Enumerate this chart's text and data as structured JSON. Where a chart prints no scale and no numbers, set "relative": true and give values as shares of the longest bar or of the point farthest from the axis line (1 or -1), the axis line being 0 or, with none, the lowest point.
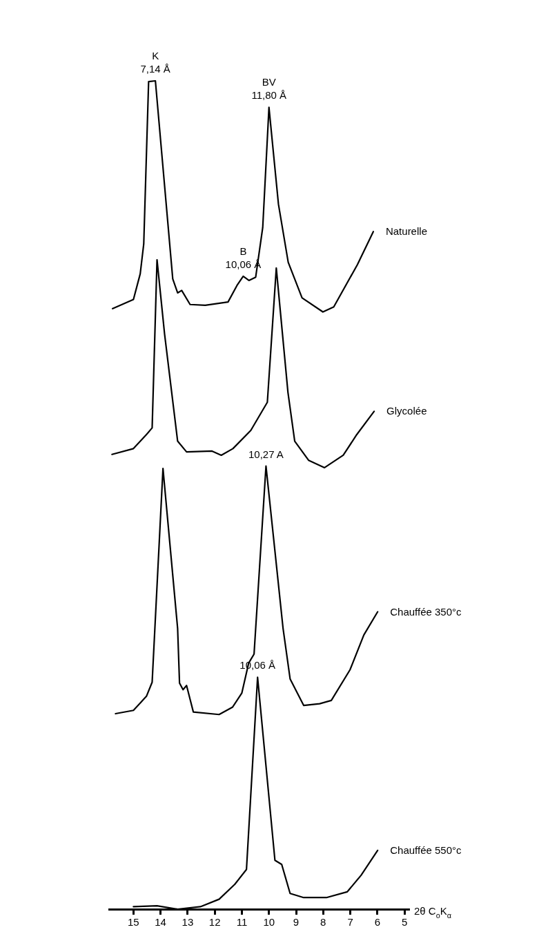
{
  "chart_data": {
    "type": "line",
    "relative": true,
    "xlabel": "2θ C$_{o}$K$_{α}$",
    "xlim": [
      15.9,
      4.85
    ],
    "xticks": [
      15,
      14,
      13,
      12,
      11,
      10,
      9,
      8,
      7,
      6,
      5
    ],
    "grid": false,
    "legend": false,
    "marker": "none",
    "line_style": "solid",
    "series": [
      {
        "name": "Naturelle",
        "color": "#000000",
        "x": [
          15.77,
          15.0,
          14.75,
          14.62,
          14.44,
          14.19,
          13.55,
          13.37,
          13.22,
          12.91,
          12.35,
          11.51,
          11.18,
          10.95,
          10.74,
          10.49,
          10.23,
          10.0,
          9.65,
          9.29,
          8.78,
          8.01,
          7.61,
          6.74,
          6.15
        ],
        "values": [
          0.725,
          0.736,
          0.767,
          0.803,
          0.999,
          1.0,
          0.761,
          0.744,
          0.747,
          0.73,
          0.729,
          0.733,
          0.753,
          0.764,
          0.759,
          0.763,
          0.823,
          0.968,
          0.851,
          0.781,
          0.738,
          0.721,
          0.727,
          0.778,
          0.818
        ]
      },
      {
        "name": "Glycolée",
        "color": "#000000",
        "x": [
          15.79,
          15.0,
          14.52,
          14.31,
          14.13,
          13.85,
          13.37,
          13.04,
          12.1,
          11.76,
          11.33,
          10.67,
          10.06,
          9.73,
          9.3,
          9.05,
          8.54,
          7.95,
          7.26,
          6.76,
          6.12
        ],
        "values": [
          0.549,
          0.556,
          0.573,
          0.581,
          0.784,
          0.694,
          0.565,
          0.552,
          0.553,
          0.548,
          0.556,
          0.578,
          0.612,
          0.774,
          0.624,
          0.565,
          0.542,
          0.533,
          0.548,
          0.573,
          0.601
        ]
      },
      {
        "name": "Chauffée 350°c",
        "color": "#000000",
        "x": [
          15.66,
          15.0,
          14.52,
          14.31,
          13.91,
          13.37,
          13.3,
          13.17,
          13.04,
          12.79,
          11.84,
          11.34,
          11.0,
          10.75,
          10.55,
          10.11,
          9.48,
          9.22,
          8.72,
          8.13,
          7.7,
          7.01,
          6.5,
          5.99
        ],
        "values": [
          0.236,
          0.24,
          0.257,
          0.274,
          0.532,
          0.339,
          0.273,
          0.265,
          0.27,
          0.238,
          0.235,
          0.244,
          0.261,
          0.297,
          0.308,
          0.535,
          0.339,
          0.278,
          0.246,
          0.248,
          0.252,
          0.289,
          0.331,
          0.359
        ]
      },
      {
        "name": "Chauffée 550°c",
        "color": "#000000",
        "x": [
          15.0,
          14.13,
          13.37,
          12.53,
          11.84,
          11.26,
          10.83,
          10.42,
          9.78,
          9.53,
          9.22,
          8.72,
          7.88,
          7.11,
          6.6,
          5.99
        ],
        "values": [
          0.003,
          0.004,
          0.0,
          0.003,
          0.012,
          0.03,
          0.048,
          0.28,
          0.059,
          0.054,
          0.019,
          0.014,
          0.014,
          0.021,
          0.041,
          0.071
        ]
      }
    ],
    "annotations": [
      {
        "text": "K\n7,14 Å",
        "x": 14.19,
        "y": 1.0
      },
      {
        "text": "BV\n11,80 Å",
        "x": 10.0,
        "y": 0.968
      },
      {
        "text": "B\n10,06 Å",
        "x": 10.95,
        "y": 0.764
      },
      {
        "text": "10,27 A",
        "x": 10.11,
        "y": 0.535
      },
      {
        "text": "10,06 Å",
        "x": 10.42,
        "y": 0.28
      }
    ]
  }
}
